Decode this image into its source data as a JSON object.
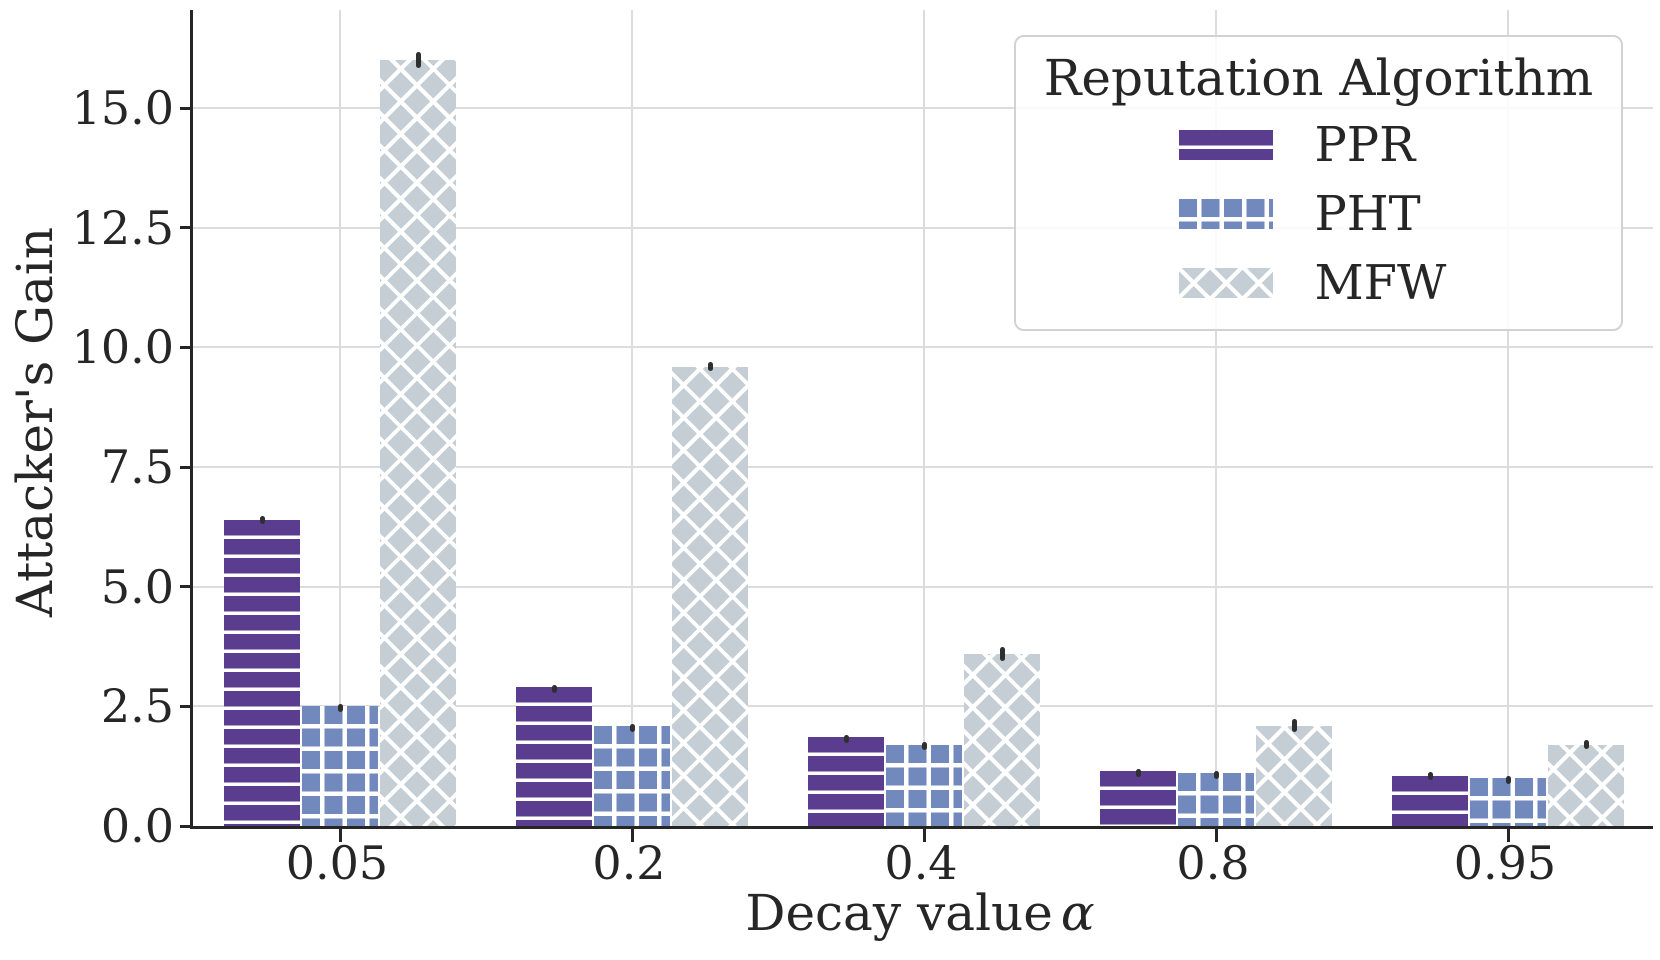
{
  "figure": {
    "background": "#ffffff",
    "axis_color": "#262626",
    "grid_color": "#dcdcdc",
    "errorbar_color": "#2f2f2f",
    "text_color": "#262626"
  },
  "chart_data": {
    "type": "bar",
    "title": "",
    "xlabel": "Decay value",
    "xlabel_symbol": "α",
    "ylabel": "Attacker's Gain",
    "categories": [
      "0.05",
      "0.2",
      "0.4",
      "0.8",
      "0.95"
    ],
    "ytick_labels": [
      "0.0",
      "2.5",
      "5.0",
      "7.5",
      "10.0",
      "12.5",
      "15.0"
    ],
    "ylim": [
      0,
      17.05
    ],
    "grid": true,
    "legend_position": "upper right",
    "legend_title": "Reputation Algorithm",
    "series": [
      {
        "name": "PPR",
        "color": "#5a3d8f",
        "hatch": "horizontal-lines",
        "values": [
          6.4,
          2.9,
          1.85,
          1.15,
          1.05
        ],
        "errors": [
          0.08,
          0.05,
          0.05,
          0.04,
          0.07
        ]
      },
      {
        "name": "PHT",
        "color": "#7289be",
        "hatch": "grid",
        "values": [
          2.5,
          2.1,
          1.7,
          1.1,
          1.0
        ],
        "errors": [
          0.05,
          0.04,
          0.05,
          0.05,
          0.04
        ]
      },
      {
        "name": "MFW",
        "color": "#c4ced4",
        "hatch": "cross-diagonal",
        "values": [
          16.0,
          9.6,
          3.6,
          2.1,
          1.7
        ],
        "errors": [
          0.17,
          0.1,
          0.15,
          0.13,
          0.1
        ]
      }
    ]
  }
}
